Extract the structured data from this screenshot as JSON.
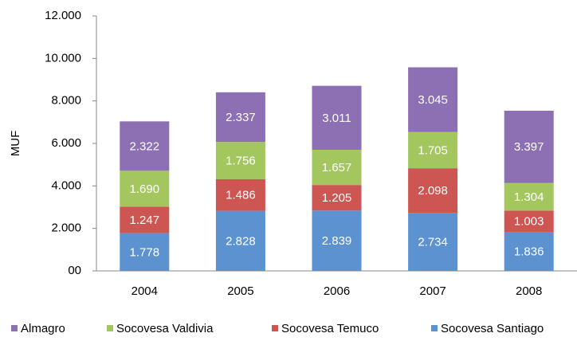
{
  "chart_data": {
    "type": "stacked_bar",
    "y_label": "MUF",
    "categories": [
      "2004",
      "2005",
      "2006",
      "2007",
      "2008"
    ],
    "series": [
      {
        "name": "Almagro",
        "color": "#8d6fb3",
        "values": [
          2322,
          2337,
          3011,
          3045,
          3397
        ],
        "value_labels": [
          "2.322",
          "2.337",
          "3.011",
          "3.045",
          "3.397"
        ]
      },
      {
        "name": "Socovesa Valdivia",
        "color": "#a4c65e",
        "values": [
          1690,
          1756,
          1657,
          1705,
          1304
        ],
        "value_labels": [
          "1.690",
          "1.756",
          "1.657",
          "1.705",
          "1.304"
        ]
      },
      {
        "name": "Socovesa Temuco",
        "color": "#cd5652",
        "values": [
          1247,
          1486,
          1205,
          2098,
          1003
        ],
        "value_labels": [
          "1.247",
          "1.486",
          "1.205",
          "2.098",
          "1.003"
        ]
      },
      {
        "name": "Socovesa Santiago",
        "color": "#5b92cf",
        "values": [
          1778,
          2828,
          2839,
          2734,
          1836
        ],
        "value_labels": [
          "1.778",
          "2.828",
          "2.839",
          "2.734",
          "1.836"
        ]
      }
    ],
    "ylim": [
      0,
      12000
    ],
    "yticks": [
      {
        "value": 0,
        "label": "00"
      },
      {
        "value": 2000,
        "label": "2.000"
      },
      {
        "value": 4000,
        "label": "4.000"
      },
      {
        "value": 6000,
        "label": "6.000"
      },
      {
        "value": 8000,
        "label": "8.000"
      },
      {
        "value": 10000,
        "label": "10.000"
      },
      {
        "value": 12000,
        "label": "12.000"
      }
    ],
    "legend": "bottom"
  }
}
